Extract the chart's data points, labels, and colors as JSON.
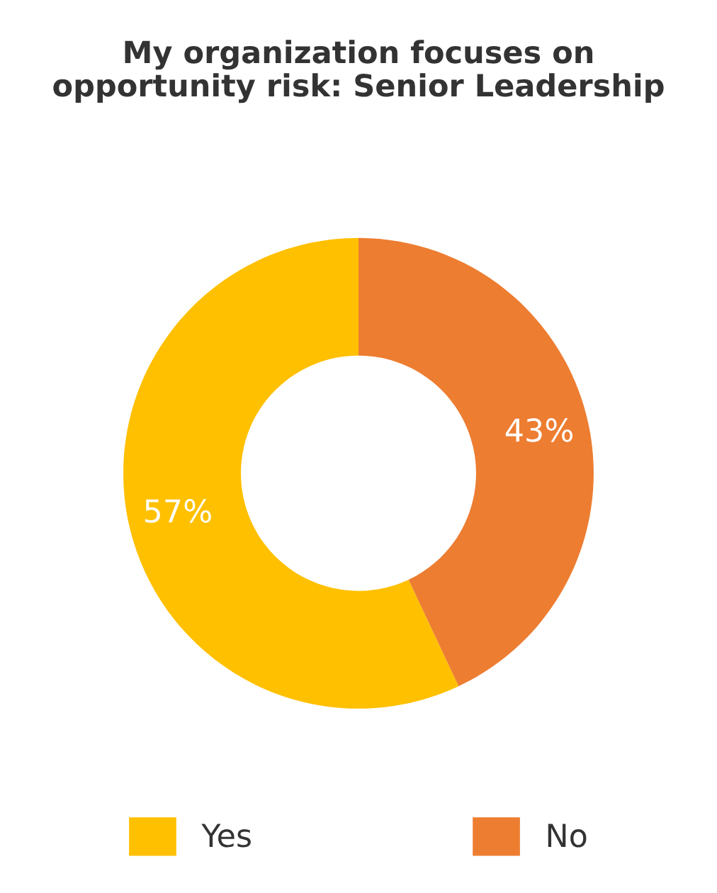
{
  "chart_data": {
    "type": "donut",
    "title": "My organization focuses on\nopportunity risk: Senior Leadership",
    "categories": [
      "Yes",
      "No"
    ],
    "values": [
      57,
      43
    ],
    "colors": [
      "#ffc000",
      "#ed7d31"
    ],
    "value_labels": [
      "57%",
      "43%"
    ],
    "legend": "bottom"
  }
}
